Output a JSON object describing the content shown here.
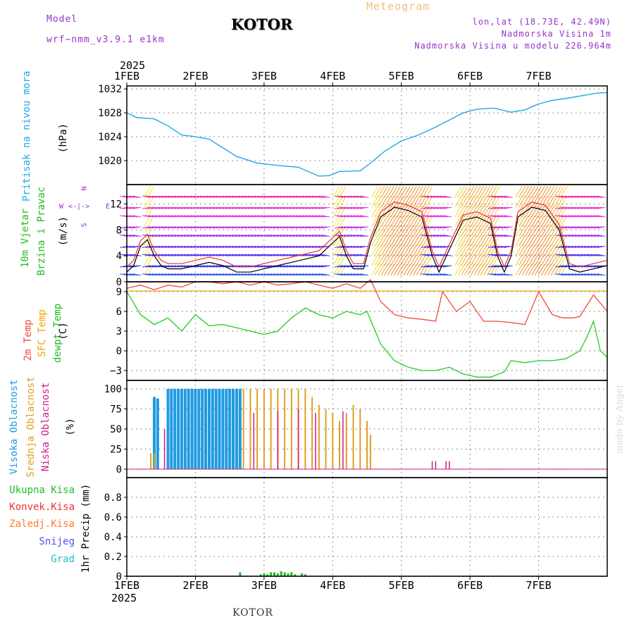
{
  "header": {
    "model_label": "Model",
    "model_name": "wrf−nmm_v3.9.1  e1km",
    "title": "KOTOR",
    "meteogram_label": "Meteogram",
    "lonlat": "lon,lat (18.73E, 42.49N)",
    "altitude": "Nadmorska Visina 1m",
    "model_altitude": "Nadmorska Visina u modelu 226.964m",
    "year_top": "2025",
    "year_bottom": "2025",
    "footer_title": "KOTOR",
    "credit": "made by Angel"
  },
  "colors": {
    "pressure": "#1fa9e6",
    "temp2m": "#ef4a3a",
    "sfc_temp": "#f0a400",
    "dewpoint": "#22cc22",
    "wind_speed": "#000000",
    "gust": "#ee3333",
    "high_cloud": "#1f9be0",
    "mid_cloud": "#e0a020",
    "low_cloud": "#cc1f88",
    "total_precip": "#22bb22",
    "conv_precip": "#ee3333",
    "frz_precip": "#ff7f2a",
    "snow": "#5050ee",
    "hail": "#20c0c0",
    "compass": "#9933cc"
  },
  "chart_data": [
    {
      "type": "line",
      "panel": "pressure",
      "ylabel_left": "Pritisak na nivou mora",
      "ylabel_unit": "(hPa)",
      "x_ticks": [
        "1FEB",
        "2FEB",
        "3FEB",
        "4FEB",
        "5FEB",
        "6FEB",
        "7FEB"
      ],
      "y_ticks": [
        1020,
        1024,
        1028,
        1032
      ],
      "ylim": [
        1016,
        1032.5
      ],
      "grid": true,
      "series": [
        {
          "x_days": [
            0,
            0.15,
            0.4,
            0.6,
            0.8,
            1.0,
            1.2,
            1.6,
            1.9,
            2.2,
            2.5,
            2.8,
            2.95,
            3.1,
            3.4,
            3.55,
            3.75,
            4.0,
            4.25,
            4.5,
            4.7,
            4.9,
            5.1,
            5.35,
            5.6,
            5.8,
            6.0,
            6.2,
            6.45,
            6.7,
            6.85,
            7.0
          ],
          "values": [
            1028,
            1027.2,
            1027.0,
            1025.8,
            1024.3,
            1024.0,
            1023.6,
            1020.7,
            1019.6,
            1019.2,
            1018.9,
            1017.4,
            1017.5,
            1018.2,
            1018.3,
            1019.6,
            1021.5,
            1023.3,
            1024.3,
            1025.6,
            1026.8,
            1028.0,
            1028.6,
            1028.8,
            1028.1,
            1028.5,
            1029.5,
            1030.1,
            1030.5,
            1031.0,
            1031.3,
            1031.4
          ]
        }
      ]
    },
    {
      "type": "line",
      "panel": "wind",
      "ylabel_left": "10m Vjetar",
      "ylabel_left2": "Brzina i Pravac",
      "ylabel_unit": "(m/s)",
      "compass_labels": [
        "N",
        "E",
        "S",
        "W"
      ],
      "y_ticks": [
        0,
        4,
        8,
        12
      ],
      "ylim": [
        0,
        15
      ],
      "grid": true,
      "series": [
        {
          "name": "",
          "x_days": [
            0,
            0.1,
            0.2,
            0.3,
            0.4,
            0.5,
            0.6,
            0.8,
            1.0,
            1.2,
            1.4,
            1.6,
            1.8,
            2.0,
            2.2,
            2.4,
            2.6,
            2.8,
            3.0,
            3.1,
            3.2,
            3.3,
            3.45,
            3.55,
            3.7,
            3.9,
            4.1,
            4.3,
            4.45,
            4.55,
            4.7,
            4.9,
            5.1,
            5.3,
            5.4,
            5.5,
            5.6,
            5.7,
            5.9,
            6.1,
            6.3,
            6.45,
            6.6,
            6.8,
            7.0
          ],
          "values": [
            1.5,
            2.5,
            5.5,
            6.5,
            4.0,
            2.5,
            2.0,
            2.0,
            2.5,
            3.0,
            2.5,
            1.5,
            1.5,
            2.0,
            2.5,
            3.0,
            3.5,
            4.0,
            6.0,
            7.0,
            4.0,
            2.0,
            2.0,
            6.0,
            10.0,
            11.5,
            11.0,
            10.0,
            4.0,
            1.5,
            5.0,
            9.5,
            10.0,
            9.0,
            4.0,
            1.5,
            4.0,
            10.0,
            11.5,
            11.0,
            8.0,
            2.0,
            1.5,
            2.0,
            2.5
          ]
        }
      ]
    },
    {
      "type": "line",
      "panel": "temperature",
      "ylabel_left": "2m Temp",
      "ylabel_left2": "SFC Temp",
      "ylabel_left3": "dewpt Temp",
      "ylabel_unit": "(C)",
      "y_ticks": [
        -3,
        0,
        3,
        6,
        9
      ],
      "ylim": [
        -4.5,
        10.5
      ],
      "grid": true,
      "series": [
        {
          "name": "2m Temp",
          "x_days": [
            0,
            0.2,
            0.4,
            0.6,
            0.8,
            1.0,
            1.2,
            1.4,
            1.6,
            1.8,
            2.0,
            2.2,
            2.4,
            2.6,
            2.8,
            3.0,
            3.2,
            3.4,
            3.55,
            3.7,
            3.9,
            4.1,
            4.3,
            4.5,
            4.6,
            4.8,
            5.0,
            5.2,
            5.4,
            5.6,
            5.8,
            6.0,
            6.2,
            6.35,
            6.5,
            6.6,
            6.8,
            7.0
          ],
          "values": [
            9.5,
            10.0,
            9.3,
            10.0,
            9.7,
            10.5,
            10.5,
            10.2,
            10.5,
            10.0,
            10.5,
            10.0,
            10.2,
            10.5,
            10.0,
            9.5,
            10.2,
            9.5,
            10.8,
            7.5,
            5.5,
            5.0,
            4.8,
            4.5,
            9.0,
            6.0,
            7.5,
            4.5,
            4.5,
            4.3,
            4.0,
            9.0,
            5.5,
            5.0,
            5.0,
            5.2,
            8.5,
            6.0
          ]
        },
        {
          "name": "SFC Temp",
          "x_days": [
            0,
            7.0
          ],
          "values": [
            9.1,
            9.1
          ]
        },
        {
          "name": "dewpt Temp",
          "x_days": [
            0,
            0.2,
            0.4,
            0.6,
            0.8,
            1.0,
            1.2,
            1.4,
            1.6,
            1.8,
            2.0,
            2.2,
            2.4,
            2.6,
            2.8,
            3.0,
            3.2,
            3.4,
            3.5,
            3.7,
            3.9,
            4.1,
            4.3,
            4.5,
            4.7,
            4.9,
            5.1,
            5.3,
            5.5,
            5.6,
            5.8,
            6.0,
            6.2,
            6.4,
            6.6,
            6.7,
            6.8,
            6.9,
            7.0
          ],
          "values": [
            9.0,
            5.5,
            4.0,
            5.0,
            3.0,
            5.5,
            3.8,
            4.0,
            3.5,
            3.0,
            2.5,
            3.0,
            5.0,
            6.5,
            5.5,
            5.0,
            6.0,
            5.5,
            6.0,
            1.0,
            -1.5,
            -2.5,
            -3.0,
            -3.0,
            -2.5,
            -3.5,
            -4.0,
            -4.0,
            -3.2,
            -1.5,
            -1.8,
            -1.5,
            -1.5,
            -1.2,
            0.0,
            2.0,
            4.5,
            0.0,
            -1.0
          ]
        }
      ]
    },
    {
      "type": "bar",
      "panel": "cloud",
      "ylabel_left": "Visoka Oblacnost",
      "ylabel_left2": "Srednja Oblacnost",
      "ylabel_left3": "Niska Oblacnost",
      "ylabel_unit": "(%)",
      "y_ticks": [
        0,
        25,
        50,
        75,
        100
      ],
      "ylim": [
        0,
        100
      ],
      "grid": true,
      "series": [
        {
          "name": "Visoka Oblacnost",
          "x_days": [
            0.4,
            0.45,
            0.6,
            0.65,
            0.7,
            0.75,
            0.8,
            0.85,
            0.9,
            0.95,
            1.0,
            1.05,
            1.1,
            1.15,
            1.2,
            1.25,
            1.3,
            1.35,
            1.4,
            1.45,
            1.5,
            1.55,
            1.6,
            1.65
          ],
          "values": [
            90,
            88,
            100,
            100,
            100,
            100,
            100,
            100,
            100,
            100,
            100,
            100,
            100,
            100,
            100,
            100,
            100,
            100,
            100,
            100,
            100,
            100,
            100,
            100
          ]
        },
        {
          "name": "Srednja Oblacnost",
          "x_days": [
            0.35,
            0.4,
            1.7,
            1.8,
            1.9,
            2.0,
            2.1,
            2.2,
            2.3,
            2.4,
            2.5,
            2.6,
            2.7,
            2.8,
            2.9,
            3.0,
            3.1,
            3.2,
            3.3,
            3.4,
            3.5,
            3.55
          ],
          "values": [
            20,
            20,
            100,
            100,
            100,
            100,
            100,
            100,
            100,
            100,
            100,
            100,
            90,
            80,
            75,
            70,
            60,
            70,
            80,
            75,
            60,
            43
          ]
        },
        {
          "name": "Niska Oblacnost",
          "x_days": [
            0.55,
            1.85,
            2.2,
            2.5,
            2.75,
            3.15,
            4.45,
            4.5,
            4.65,
            4.7
          ],
          "values": [
            50,
            70,
            72,
            75,
            70,
            72,
            10,
            10,
            10,
            10
          ]
        }
      ]
    },
    {
      "type": "bar",
      "panel": "precip",
      "ylabel_left": "1hr Precip (mm)",
      "legend": [
        "Ukupna Kisa",
        "Konvek.Kisa",
        "Zaledj.Kisa",
        "Snijeg",
        "Grad"
      ],
      "y_ticks": [
        0,
        0.2,
        0.4,
        0.6,
        0.8
      ],
      "ylim": [
        0,
        1.0
      ],
      "grid": true,
      "series": [
        {
          "name": "Ukupna Kisa",
          "x_days": [
            1.65,
            1.95,
            2.0,
            2.05,
            2.1,
            2.15,
            2.2,
            2.25,
            2.3,
            2.35,
            2.4,
            2.45,
            2.55,
            2.6
          ],
          "values": [
            0.04,
            0.02,
            0.03,
            0.02,
            0.04,
            0.04,
            0.03,
            0.05,
            0.04,
            0.03,
            0.04,
            0.02,
            0.03,
            0.02
          ]
        }
      ]
    }
  ]
}
